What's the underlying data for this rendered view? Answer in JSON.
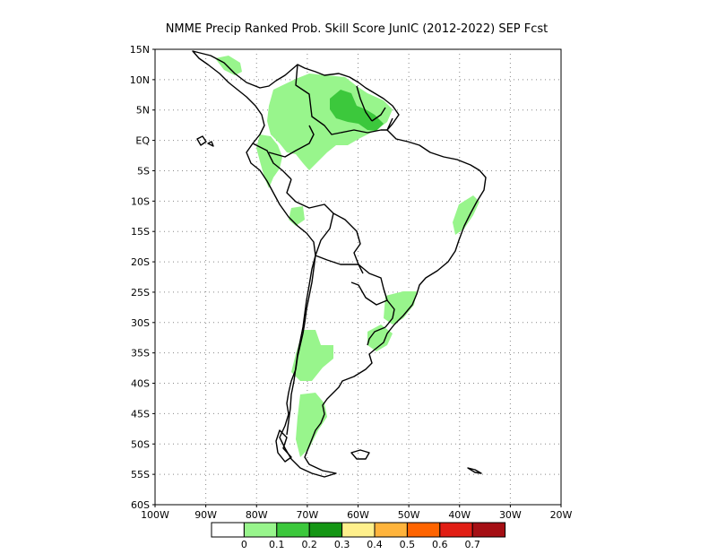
{
  "title": "NMME Precip Ranked Prob. Skill Score JunIC (2012-2022) SEP Fcst",
  "lat_labels": [
    "15N",
    "10N",
    "5N",
    "EQ",
    "5S",
    "10S",
    "15S",
    "20S",
    "25S",
    "30S",
    "35S",
    "40S",
    "45S",
    "50S",
    "55S",
    "60S"
  ],
  "lon_labels": [
    "100W",
    "90W",
    "80W",
    "70W",
    "60W",
    "50W",
    "40W",
    "30W",
    "20W"
  ],
  "colorbar": {
    "colors": [
      "#ffffff",
      "#98f58c",
      "#3cc83c",
      "#149614",
      "#fff08c",
      "#ffb43c",
      "#ff6400",
      "#e11e14",
      "#a50f14"
    ],
    "labels": [
      "0",
      "0.1",
      "0.2",
      "0.3",
      "0.4",
      "0.5",
      "0.6",
      "0.7"
    ]
  },
  "map": {
    "lon_range": [
      -100,
      -20
    ],
    "lat_range": [
      -60,
      15
    ],
    "grid": "dotted",
    "land_color": "#ffffff",
    "outline_color": "#000000"
  }
}
